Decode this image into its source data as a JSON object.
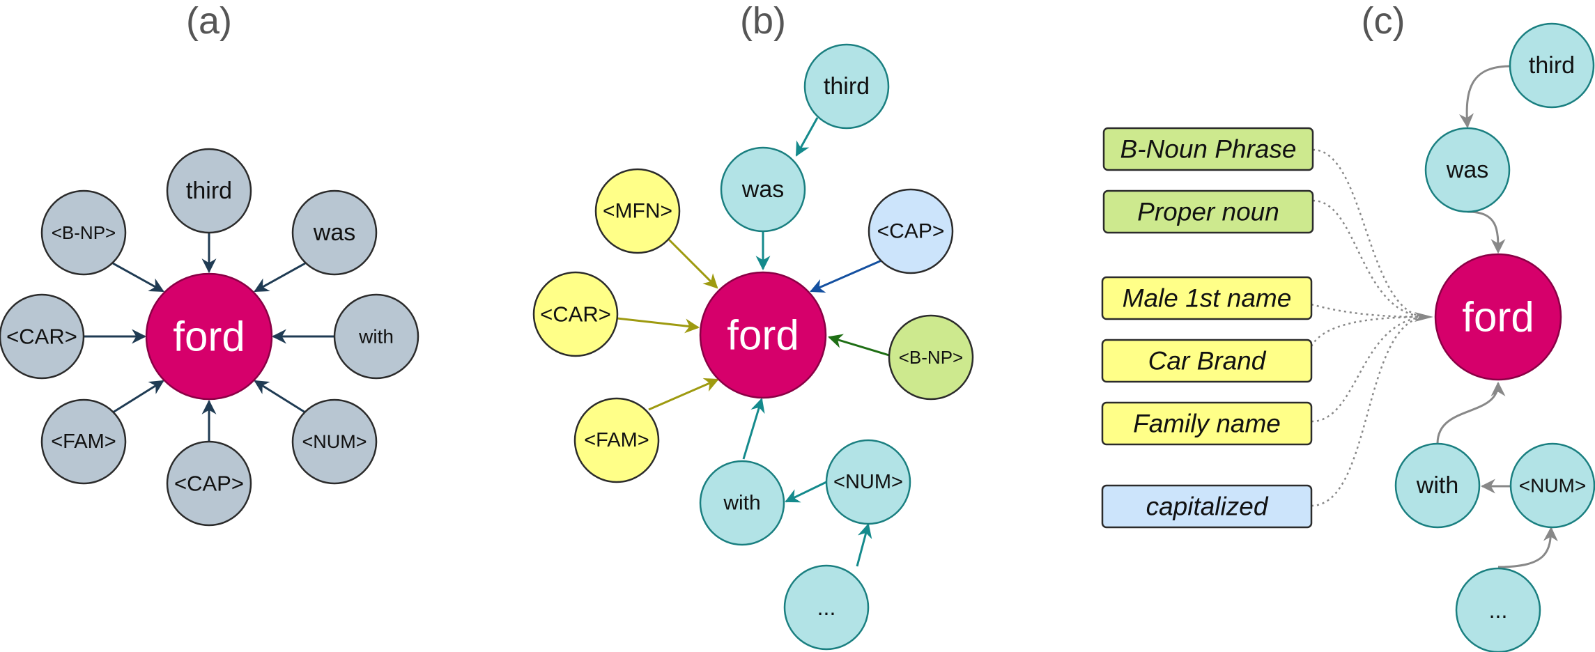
{
  "panels": {
    "a": {
      "label": "(a)",
      "center": "ford",
      "nodes": [
        "third",
        "was",
        "with",
        "<NUM>",
        "<CAP>",
        "<FAM>",
        "<CAR>",
        "<B-NP>"
      ]
    },
    "b": {
      "label": "(b)",
      "center": "ford",
      "nodes": [
        "third",
        "was",
        "<CAP>",
        "<B-NP>",
        "<MFN>",
        "<CAR>",
        "<FAM>",
        "with",
        "<NUM>",
        "..."
      ]
    },
    "c": {
      "label": "(c)",
      "center": "ford",
      "nodes": [
        "third",
        "was",
        "with",
        "<NUM>",
        "..."
      ],
      "boxes": [
        "B-Noun Phrase",
        "Proper noun",
        "Male 1st name",
        "Car Brand",
        "Family name",
        "capitalized"
      ]
    }
  },
  "colors": {
    "center": "#d6006b",
    "gray_node": "#b8c6d2",
    "teal_node": "#b2e3e6",
    "yellow_node": "#ffff88",
    "green_node": "#cde98e",
    "blue_node": "#cce4fb",
    "arrow_a": "#1f3b53",
    "arrow_teal": "#148a8c",
    "arrow_olive": "#9e9a10",
    "arrow_blue": "#1450a0",
    "arrow_green": "#1e6e14",
    "arrow_gray": "#888888"
  }
}
